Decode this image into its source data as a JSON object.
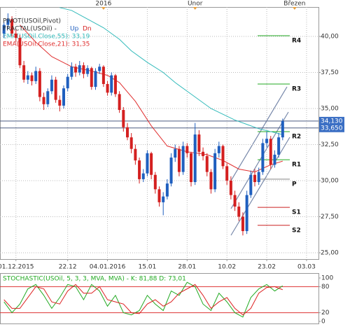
{
  "chart_data": {
    "type": "candlestick",
    "legend": {
      "pivot": "PIVOT(USOil,Pivot)",
      "fractal": "FRACTAL(USOil) -",
      "up": "Up",
      "dn": "Dn"
    },
    "ylim": [
      24.56,
      42.04
    ],
    "yticks": [
      {
        "value": 25,
        "label": "25,00"
      },
      {
        "value": 27.5,
        "label": "27,50"
      },
      {
        "value": 30,
        "label": "30,00"
      },
      {
        "value": 32.5,
        "label": "32,50"
      },
      {
        "value": 35,
        "label": "35,00"
      },
      {
        "value": 37.5,
        "label": "37,50"
      },
      {
        "value": 40,
        "label": "40,00"
      }
    ],
    "xlim": [
      -1,
      79
    ],
    "xticks": [
      {
        "value": 3,
        "label": "01.12.2015"
      },
      {
        "value": 16,
        "label": "22.12"
      },
      {
        "value": 26,
        "label": "04.01.2016"
      },
      {
        "value": 36,
        "label": "15.01"
      },
      {
        "value": 46,
        "label": "28.01"
      },
      {
        "value": 56,
        "label": "10.02"
      },
      {
        "value": 66,
        "label": "23.02"
      },
      {
        "value": 76,
        "label": "03.03"
      }
    ],
    "top_labels": [
      {
        "value": 25,
        "label": "2016"
      },
      {
        "value": 48,
        "label": "Únor"
      },
      {
        "value": 73,
        "label": "Březen"
      }
    ],
    "grid": true,
    "up_color": "#1f5fbf",
    "down_color": "#d42020",
    "ohlc": [
      [
        40.2,
        41.0,
        39.9,
        40.8
      ],
      [
        40.8,
        41.6,
        40.5,
        41.2
      ],
      [
        41.2,
        41.4,
        40.0,
        40.2
      ],
      [
        40.2,
        40.5,
        39.6,
        39.9
      ],
      [
        39.9,
        40.1,
        37.8,
        38.0
      ],
      [
        38.0,
        38.3,
        36.8,
        37.0
      ],
      [
        37.0,
        37.6,
        36.7,
        37.3
      ],
      [
        37.3,
        37.5,
        36.6,
        36.9
      ],
      [
        36.9,
        37.9,
        36.7,
        37.6
      ],
      [
        37.6,
        37.8,
        35.5,
        35.8
      ],
      [
        35.8,
        36.1,
        34.9,
        35.3
      ],
      [
        35.3,
        36.4,
        35.1,
        36.2
      ],
      [
        36.2,
        37.3,
        36.0,
        37.0
      ],
      [
        37.0,
        37.2,
        35.4,
        35.6
      ],
      [
        35.6,
        35.9,
        34.8,
        35.2
      ],
      [
        35.2,
        36.6,
        35.0,
        36.4
      ],
      [
        36.4,
        37.4,
        36.2,
        37.2
      ],
      [
        37.2,
        38.2,
        37.0,
        37.9
      ],
      [
        37.9,
        38.1,
        37.2,
        37.5
      ],
      [
        37.5,
        38.3,
        37.3,
        38.0
      ],
      [
        38.0,
        38.2,
        37.1,
        37.4
      ],
      [
        37.4,
        38.0,
        37.2,
        37.8
      ],
      [
        37.8,
        37.9,
        36.3,
        36.5
      ],
      [
        36.5,
        37.8,
        36.3,
        37.6
      ],
      [
        37.6,
        38.1,
        37.4,
        37.9
      ],
      [
        37.9,
        38.0,
        36.5,
        36.7
      ],
      [
        36.7,
        36.9,
        35.9,
        36.1
      ],
      [
        36.1,
        37.5,
        35.9,
        37.3
      ],
      [
        37.3,
        37.4,
        35.8,
        36.0
      ],
      [
        36.0,
        36.2,
        34.7,
        34.9
      ],
      [
        34.9,
        35.1,
        33.4,
        33.7
      ],
      [
        33.7,
        34.0,
        32.8,
        33.0
      ],
      [
        33.0,
        33.3,
        31.9,
        32.2
      ],
      [
        32.2,
        32.5,
        31.1,
        31.4
      ],
      [
        31.4,
        31.6,
        29.8,
        30.1
      ],
      [
        30.1,
        30.8,
        29.9,
        30.5
      ],
      [
        30.5,
        32.1,
        30.3,
        31.9
      ],
      [
        31.9,
        32.0,
        30.1,
        30.4
      ],
      [
        30.4,
        30.6,
        29.1,
        29.4
      ],
      [
        29.4,
        29.6,
        28.2,
        28.5
      ],
      [
        28.5,
        29.2,
        27.6,
        28.9
      ],
      [
        28.9,
        30.1,
        28.7,
        29.8
      ],
      [
        29.8,
        31.9,
        29.6,
        31.6
      ],
      [
        31.6,
        32.5,
        31.3,
        32.2
      ],
      [
        32.2,
        32.4,
        30.3,
        30.6
      ],
      [
        30.6,
        32.7,
        30.4,
        32.4
      ],
      [
        32.4,
        32.6,
        31.6,
        31.9
      ],
      [
        31.9,
        32.0,
        29.6,
        29.9
      ],
      [
        29.9,
        34.0,
        29.7,
        33.2
      ],
      [
        33.2,
        33.5,
        31.7,
        32.0
      ],
      [
        32.0,
        32.3,
        31.4,
        31.7
      ],
      [
        31.7,
        31.9,
        30.3,
        30.6
      ],
      [
        30.6,
        30.8,
        29.1,
        29.4
      ],
      [
        29.4,
        32.2,
        29.2,
        31.9
      ],
      [
        31.9,
        32.7,
        31.6,
        32.4
      ],
      [
        32.4,
        32.5,
        30.8,
        31.0
      ],
      [
        31.0,
        31.2,
        29.7,
        30.0
      ],
      [
        30.0,
        30.3,
        28.7,
        29.0
      ],
      [
        29.0,
        29.3,
        27.9,
        28.2
      ],
      [
        28.2,
        28.5,
        27.2,
        27.5
      ],
      [
        27.5,
        27.8,
        26.2,
        26.5
      ],
      [
        26.5,
        29.3,
        26.3,
        29.0
      ],
      [
        29.0,
        30.7,
        28.8,
        30.4
      ],
      [
        30.4,
        30.8,
        29.6,
        29.9
      ],
      [
        29.9,
        30.9,
        29.7,
        30.6
      ],
      [
        30.6,
        32.9,
        30.4,
        32.6
      ],
      [
        32.6,
        33.4,
        32.3,
        32.9
      ],
      [
        32.9,
        33.1,
        30.8,
        31.1
      ],
      [
        31.1,
        32.1,
        30.9,
        31.8
      ],
      [
        31.8,
        33.3,
        31.6,
        33.0
      ],
      [
        33.0,
        34.3,
        32.8,
        34.13
      ]
    ],
    "lines": [
      {
        "name": "EMA(USOil.Close,55): 33,19",
        "color": "#33bbbb",
        "x": [
          14,
          17,
          21,
          25,
          29,
          32,
          36,
          40,
          43,
          46,
          49,
          52,
          55,
          58,
          61,
          64,
          67,
          70
        ],
        "values": [
          42.0,
          41.8,
          41.2,
          40.6,
          39.8,
          39.0,
          38.2,
          37.5,
          36.8,
          36.2,
          35.6,
          35.0,
          34.6,
          34.2,
          33.9,
          33.6,
          33.4,
          33.19
        ]
      },
      {
        "name": "EMA(USOil.Close,21): 31,35",
        "color": "#e03030",
        "x": [
          4,
          8,
          12,
          17,
          22,
          26,
          29,
          33,
          37,
          41,
          46,
          51,
          55,
          59,
          63,
          67,
          70
        ],
        "values": [
          40.8,
          39.6,
          38.6,
          37.9,
          37.6,
          37.3,
          36.8,
          35.5,
          33.8,
          32.4,
          32.0,
          31.8,
          31.4,
          30.8,
          30.6,
          31.1,
          31.35
        ]
      }
    ],
    "pivots": [
      {
        "name": "R4",
        "value": 40.05,
        "color": "#22aa22"
      },
      {
        "name": "R3",
        "value": 36.7,
        "color": "#22aa22"
      },
      {
        "name": "R2",
        "value": 33.4,
        "color": "#22aa22"
      },
      {
        "name": "R1",
        "value": 31.45,
        "color": "#22aa22"
      },
      {
        "name": "P",
        "value": 30.1,
        "color": "#888888"
      },
      {
        "name": "S1",
        "value": 28.15,
        "color": "#cc2222"
      },
      {
        "name": "S2",
        "value": 26.9,
        "color": "#cc2222"
      }
    ],
    "price_lines": [
      {
        "value": 34.13,
        "label": "34,130"
      },
      {
        "value": 33.65,
        "label": "33,650"
      }
    ],
    "stochastic": {
      "title": "STOCHASTIC(USOil, 5, 3, 3, MVA, MVA) - K: 81,88  D: 73,01",
      "ylim": [
        0,
        100
      ],
      "yticks": [
        0,
        20,
        80,
        100
      ],
      "level_lines": [
        20,
        80
      ],
      "series": [
        {
          "name": "K",
          "color": "#22aa22",
          "x": [
            0,
            2,
            4,
            6,
            8,
            10,
            12,
            14,
            16,
            18,
            20,
            22,
            24,
            26,
            28,
            30,
            32,
            34,
            36,
            38,
            40,
            42,
            44,
            46,
            48,
            50,
            52,
            54,
            56,
            58,
            60,
            62,
            64,
            66,
            68,
            70
          ],
          "values": [
            45,
            20,
            40,
            75,
            85,
            60,
            30,
            55,
            85,
            80,
            50,
            85,
            70,
            35,
            60,
            20,
            15,
            25,
            60,
            40,
            25,
            70,
            60,
            90,
            80,
            40,
            25,
            65,
            45,
            20,
            10,
            55,
            75,
            85,
            70,
            82
          ]
        },
        {
          "name": "D",
          "color": "#dd2222",
          "x": [
            0,
            2,
            4,
            6,
            8,
            10,
            12,
            14,
            16,
            18,
            20,
            22,
            24,
            26,
            28,
            30,
            32,
            34,
            36,
            38,
            40,
            42,
            44,
            46,
            48,
            50,
            52,
            54,
            56,
            58,
            60,
            62,
            64,
            66,
            68,
            70
          ],
          "values": [
            50,
            30,
            30,
            55,
            80,
            75,
            45,
            40,
            70,
            85,
            65,
            65,
            80,
            50,
            45,
            40,
            20,
            18,
            40,
            50,
            35,
            45,
            65,
            75,
            85,
            60,
            30,
            45,
            55,
            30,
            15,
            30,
            65,
            78,
            80,
            73
          ]
        }
      ]
    }
  }
}
